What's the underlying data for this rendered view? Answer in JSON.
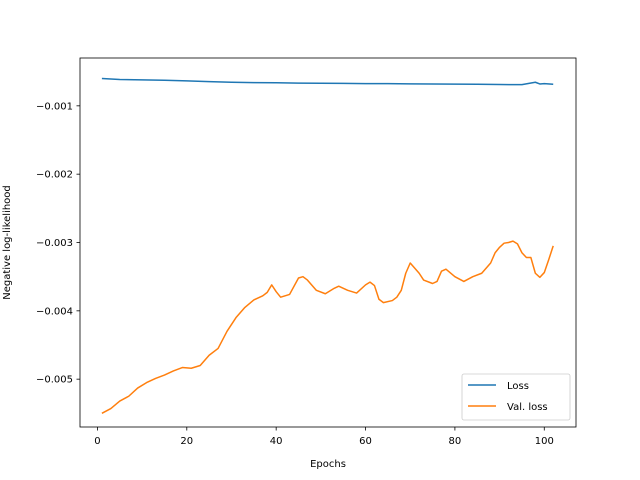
{
  "chart_data": {
    "type": "line",
    "title": "",
    "xlabel": "Epochs",
    "ylabel": "Negative log-likelihood",
    "xlim": [
      -3.9,
      107.1
    ],
    "ylim": [
      -0.0057,
      -0.0003
    ],
    "xticks": [
      0,
      20,
      40,
      60,
      80,
      100
    ],
    "xtick_labels": [
      "0",
      "20",
      "40",
      "60",
      "80",
      "100"
    ],
    "yticks": [
      -0.005,
      -0.004,
      -0.003,
      -0.002,
      -0.001
    ],
    "ytick_labels": [
      "−0.005",
      "−0.004",
      "−0.003",
      "−0.002",
      "−0.001"
    ],
    "grid": false,
    "legend": "lower-right",
    "series": [
      {
        "name": "Loss",
        "color": "#1f77b4",
        "x": [
          1,
          5,
          10,
          15,
          20,
          25,
          30,
          35,
          40,
          45,
          50,
          55,
          60,
          65,
          70,
          75,
          80,
          85,
          90,
          95,
          98,
          99,
          100,
          102
        ],
        "y": [
          -0.0006,
          -0.000615,
          -0.00062,
          -0.000625,
          -0.000635,
          -0.000645,
          -0.000655,
          -0.00066,
          -0.000662,
          -0.000668,
          -0.00067,
          -0.000672,
          -0.000675,
          -0.000675,
          -0.000678,
          -0.00068,
          -0.000682,
          -0.000685,
          -0.000688,
          -0.00069,
          -0.000655,
          -0.00068,
          -0.000675,
          -0.000685
        ]
      },
      {
        "name": "Val. loss",
        "color": "#ff7f0e",
        "x": [
          1,
          3,
          5,
          7,
          9,
          11,
          13,
          15,
          17,
          19,
          21,
          23,
          25,
          27,
          29,
          31,
          33,
          35,
          37,
          38,
          39,
          40,
          41,
          43,
          45,
          46,
          47,
          49,
          51,
          53,
          54,
          56,
          58,
          60,
          61,
          62,
          63,
          64,
          66,
          67,
          68,
          69,
          70,
          72,
          73,
          75,
          76,
          77,
          78,
          80,
          82,
          84,
          86,
          88,
          89,
          90,
          91,
          92,
          93,
          94,
          95,
          96,
          97,
          98,
          99,
          100,
          101,
          102
        ],
        "y": [
          -0.0055,
          -0.00543,
          -0.00532,
          -0.00525,
          -0.00513,
          -0.00505,
          -0.00499,
          -0.00494,
          -0.00488,
          -0.00483,
          -0.00484,
          -0.0048,
          -0.00465,
          -0.00455,
          -0.0043,
          -0.0041,
          -0.00395,
          -0.00384,
          -0.00378,
          -0.00373,
          -0.00362,
          -0.00372,
          -0.0038,
          -0.00376,
          -0.00352,
          -0.0035,
          -0.00355,
          -0.0037,
          -0.00375,
          -0.00367,
          -0.00364,
          -0.0037,
          -0.00374,
          -0.00362,
          -0.00358,
          -0.00363,
          -0.00383,
          -0.00388,
          -0.00385,
          -0.0038,
          -0.0037,
          -0.00345,
          -0.0033,
          -0.00345,
          -0.00355,
          -0.0036,
          -0.00357,
          -0.00342,
          -0.00339,
          -0.0035,
          -0.00357,
          -0.0035,
          -0.00345,
          -0.0033,
          -0.00315,
          -0.00307,
          -0.00301,
          -0.003,
          -0.00298,
          -0.00302,
          -0.00315,
          -0.00322,
          -0.00322,
          -0.00345,
          -0.00351,
          -0.00344,
          -0.00325,
          -0.00305
        ]
      }
    ]
  }
}
